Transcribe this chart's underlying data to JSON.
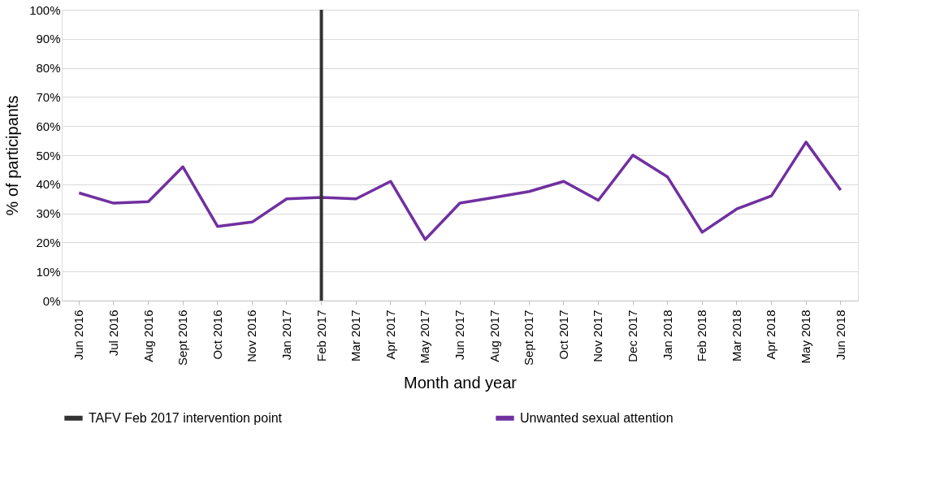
{
  "chart_data": {
    "type": "line",
    "xlabel": "Month and year",
    "ylabel": "% of participants",
    "categories": [
      "Jun 2016",
      "Jul 2016",
      "Aug 2016",
      "Sept 2016",
      "Oct 2016",
      "Nov 2016",
      "Jan 2017",
      "Feb 2017",
      "Mar 2017",
      "Apr 2017",
      "May 2017",
      "Jun 2017",
      "Aug 2017",
      "Sept 2017",
      "Oct 2017",
      "Nov 2017",
      "Dec 2017",
      "Jan 2018",
      "Feb 2018",
      "Mar 2018",
      "Apr 2018",
      "May 2018",
      "Jun 2018"
    ],
    "series": [
      {
        "name": "Unwanted sexual attention",
        "color": "#7030a0",
        "values": [
          37,
          33.5,
          34,
          46,
          25.5,
          27,
          35,
          35.5,
          35,
          41,
          21,
          33.5,
          35.5,
          37.5,
          41,
          34.5,
          50,
          42.5,
          23.5,
          31.5,
          36,
          54.5,
          38
        ]
      }
    ],
    "ylim": [
      0,
      100
    ],
    "yticks": [
      {
        "value": 0,
        "label": "0%"
      },
      {
        "value": 10,
        "label": "10%"
      },
      {
        "value": 20,
        "label": "20%"
      },
      {
        "value": 30,
        "label": "30%"
      },
      {
        "value": 40,
        "label": "40%"
      },
      {
        "value": 50,
        "label": "50%"
      },
      {
        "value": 60,
        "label": "60%"
      },
      {
        "value": 70,
        "label": "70%"
      },
      {
        "value": 80,
        "label": "80%"
      },
      {
        "value": 90,
        "label": "90%"
      },
      {
        "value": 100,
        "label": "100%"
      }
    ],
    "ref_lines": [
      {
        "axis": "x",
        "value": "Feb 2017",
        "label": "TAFV Feb 2017 intervention point",
        "color": "#333333"
      }
    ],
    "grid": "y",
    "legend": "bottom",
    "marker": "none",
    "line_style": "solid"
  }
}
